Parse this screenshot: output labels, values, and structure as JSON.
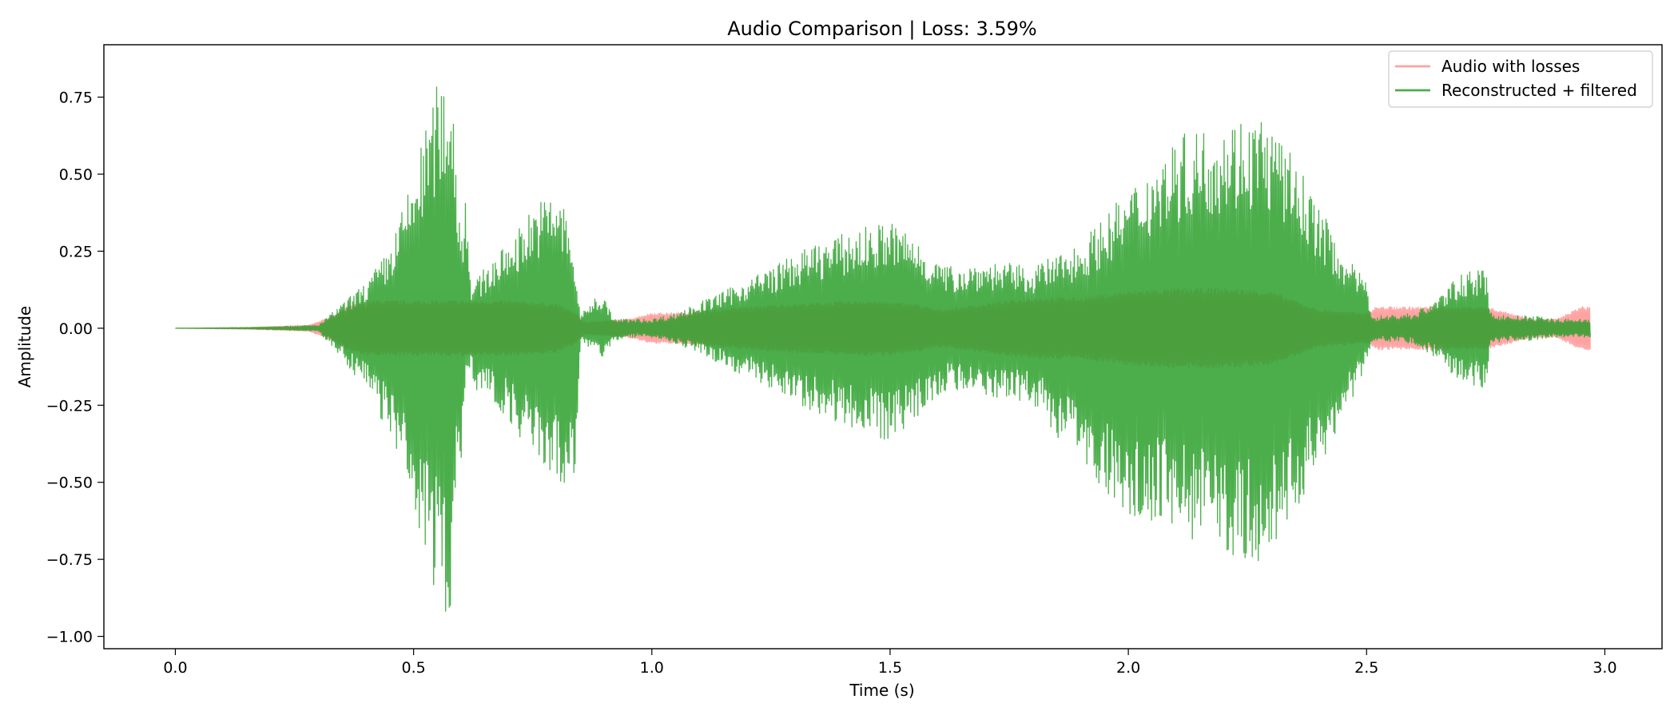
{
  "chart_data": {
    "type": "line",
    "title": "Audio Comparison | Loss: 3.59%",
    "xlabel": "Time (s)",
    "ylabel": "Amplitude",
    "xlim": [
      -0.15,
      3.12
    ],
    "ylim": [
      -1.04,
      0.92
    ],
    "x_ticks": [
      0.0,
      0.5,
      1.0,
      1.5,
      2.0,
      2.5,
      3.0
    ],
    "x_tick_labels": [
      "0.0",
      "0.5",
      "1.0",
      "1.5",
      "2.0",
      "2.5",
      "3.0"
    ],
    "y_ticks": [
      0.75,
      0.5,
      0.25,
      0.0,
      -0.25,
      -0.5,
      -0.75,
      -1.0
    ],
    "y_tick_labels": [
      "0.75",
      "0.50",
      "0.25",
      "0.00",
      "−0.25",
      "−0.50",
      "−0.75",
      "−1.00"
    ],
    "grid": false,
    "legend_position": "top-right",
    "series": [
      {
        "name": "Audio with losses",
        "color": "#ff6464",
        "envelope": {
          "t": [
            0.0,
            0.16,
            0.28,
            0.33,
            0.36,
            0.4,
            0.5,
            0.6,
            0.62,
            0.7,
            0.8,
            0.84,
            0.86,
            0.95,
            1.0,
            1.05,
            1.2,
            1.3,
            1.45,
            1.55,
            1.6,
            1.7,
            1.8,
            1.9,
            2.0,
            2.1,
            2.2,
            2.3,
            2.4,
            2.5,
            2.52,
            2.6,
            2.7,
            2.75,
            2.8,
            2.85,
            2.9,
            2.95,
            2.97
          ],
          "top": [
            0.0,
            0.003,
            0.01,
            0.04,
            0.07,
            0.09,
            0.09,
            0.09,
            0.09,
            0.09,
            0.08,
            0.05,
            0.02,
            0.03,
            0.05,
            0.05,
            0.07,
            0.08,
            0.09,
            0.08,
            0.06,
            0.08,
            0.1,
            0.1,
            0.12,
            0.13,
            0.13,
            0.12,
            0.06,
            0.05,
            0.07,
            0.07,
            0.07,
            0.07,
            0.05,
            0.03,
            0.03,
            0.07,
            0.07
          ],
          "bottom": [
            0.0,
            -0.003,
            -0.01,
            -0.04,
            -0.07,
            -0.09,
            -0.09,
            -0.09,
            -0.09,
            -0.09,
            -0.08,
            -0.05,
            -0.02,
            -0.03,
            -0.05,
            -0.05,
            -0.07,
            -0.08,
            -0.09,
            -0.08,
            -0.06,
            -0.08,
            -0.1,
            -0.1,
            -0.12,
            -0.13,
            -0.13,
            -0.12,
            -0.06,
            -0.05,
            -0.07,
            -0.07,
            -0.07,
            -0.07,
            -0.05,
            -0.03,
            -0.03,
            -0.07,
            -0.07
          ]
        }
      },
      {
        "name": "Reconstructed + filtered",
        "color": "#2ca02c",
        "envelope": {
          "t": [
            0.0,
            0.16,
            0.3,
            0.35,
            0.4,
            0.45,
            0.5,
            0.55,
            0.58,
            0.59,
            0.6,
            0.61,
            0.62,
            0.63,
            0.65,
            0.7,
            0.75,
            0.8,
            0.82,
            0.84,
            0.85,
            0.88,
            0.9,
            0.92,
            0.95,
            1.0,
            1.05,
            1.15,
            1.25,
            1.35,
            1.45,
            1.5,
            1.55,
            1.6,
            1.62,
            1.7,
            1.8,
            1.9,
            2.0,
            2.1,
            2.2,
            2.28,
            2.35,
            2.45,
            2.5,
            2.51,
            2.52,
            2.6,
            2.65,
            2.7,
            2.75,
            2.76,
            2.8,
            2.85,
            2.9,
            2.97
          ],
          "top": [
            0.0,
            0.003,
            0.01,
            0.08,
            0.15,
            0.26,
            0.5,
            0.8,
            0.83,
            0.55,
            0.3,
            0.5,
            0.15,
            0.15,
            0.2,
            0.28,
            0.4,
            0.45,
            0.38,
            0.2,
            0.04,
            0.1,
            0.1,
            0.03,
            0.03,
            0.03,
            0.05,
            0.12,
            0.2,
            0.28,
            0.33,
            0.35,
            0.3,
            0.22,
            0.2,
            0.22,
            0.2,
            0.28,
            0.45,
            0.62,
            0.68,
            0.7,
            0.55,
            0.25,
            0.15,
            0.05,
            0.04,
            0.05,
            0.1,
            0.18,
            0.19,
            0.05,
            0.04,
            0.04,
            0.03,
            0.03
          ],
          "bottom": [
            0.0,
            -0.003,
            -0.01,
            -0.1,
            -0.2,
            -0.35,
            -0.6,
            -0.88,
            -0.95,
            -0.5,
            -0.42,
            -0.15,
            -0.15,
            -0.2,
            -0.22,
            -0.3,
            -0.42,
            -0.5,
            -0.58,
            -0.45,
            -0.04,
            -0.08,
            -0.1,
            -0.04,
            -0.03,
            -0.03,
            -0.05,
            -0.12,
            -0.2,
            -0.28,
            -0.34,
            -0.37,
            -0.3,
            -0.22,
            -0.2,
            -0.22,
            -0.25,
            -0.45,
            -0.6,
            -0.66,
            -0.73,
            -0.78,
            -0.6,
            -0.3,
            -0.12,
            -0.05,
            -0.04,
            -0.05,
            -0.1,
            -0.18,
            -0.2,
            -0.05,
            -0.04,
            -0.04,
            -0.03,
            -0.03
          ]
        }
      }
    ]
  }
}
